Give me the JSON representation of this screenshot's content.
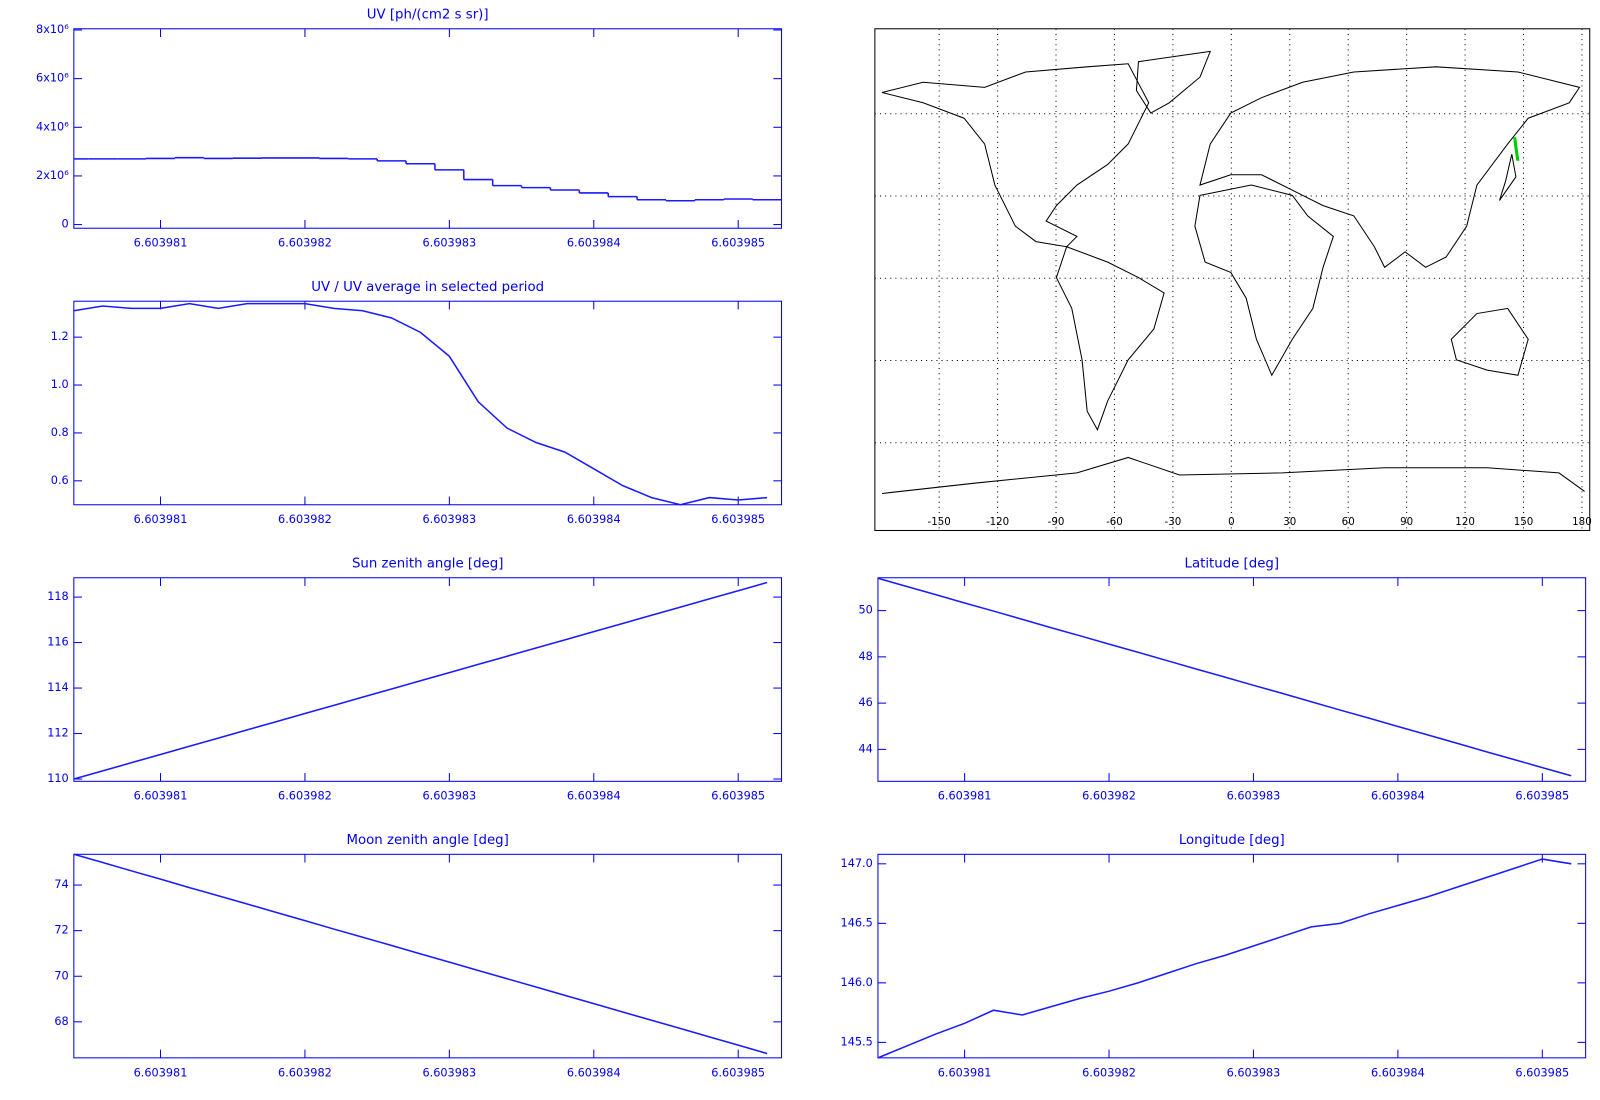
{
  "chart_data": [
    {
      "type": "line",
      "steps": true,
      "title": "UV [ph/(cm2 s sr)]",
      "color": "#1a1aff",
      "x": [
        6.6039804,
        6.6039806,
        6.6039808,
        6.603981,
        6.6039812,
        6.6039814,
        6.6039816,
        6.6039818,
        6.603982,
        6.6039822,
        6.6039824,
        6.6039826,
        6.6039828,
        6.603983,
        6.6039832,
        6.6039834,
        6.6039836,
        6.6039838,
        6.603984,
        6.6039842,
        6.6039844,
        6.6039846,
        6.6039848,
        6.603985,
        6.6039852
      ],
      "values": [
        2700000,
        2700000,
        2700000,
        2720000,
        2750000,
        2720000,
        2730000,
        2740000,
        2740000,
        2720000,
        2700000,
        2620000,
        2500000,
        2250000,
        1850000,
        1600000,
        1520000,
        1420000,
        1300000,
        1150000,
        1020000,
        980000,
        1020000,
        1050000,
        1020000
      ],
      "xlim": [
        6.6039804,
        6.6039853
      ],
      "xticks": [
        6.603981,
        6.603982,
        6.603983,
        6.603984,
        6.603985
      ],
      "ylim": [
        -150000,
        8050000
      ],
      "yticks": [
        0,
        {
          "value": 2000000,
          "label": "2x10⁶"
        },
        {
          "value": 4000000,
          "label": "4x10⁶"
        },
        {
          "value": 6000000,
          "label": "6x10⁶"
        },
        {
          "value": 8000000,
          "label": "8x10⁶"
        }
      ]
    },
    {
      "type": "line",
      "title": "UV / UV average in selected period",
      "color": "#1a1aff",
      "x": [
        6.6039804,
        6.6039806,
        6.6039808,
        6.603981,
        6.6039812,
        6.6039814,
        6.6039816,
        6.6039818,
        6.603982,
        6.6039822,
        6.6039824,
        6.6039826,
        6.6039828,
        6.603983,
        6.6039832,
        6.6039834,
        6.6039836,
        6.6039838,
        6.603984,
        6.6039842,
        6.6039844,
        6.6039846,
        6.6039848,
        6.603985,
        6.6039852
      ],
      "values": [
        1.31,
        1.33,
        1.32,
        1.32,
        1.34,
        1.32,
        1.34,
        1.34,
        1.34,
        1.32,
        1.31,
        1.28,
        1.22,
        1.12,
        0.93,
        0.82,
        0.76,
        0.72,
        0.65,
        0.58,
        0.53,
        0.5,
        0.53,
        0.52,
        0.53
      ],
      "xlim": [
        6.6039804,
        6.6039853
      ],
      "xticks": [
        6.603981,
        6.603982,
        6.603983,
        6.603984,
        6.603985
      ],
      "ylim": [
        0.5,
        1.35
      ],
      "yticks": [
        0.6,
        0.8,
        {
          "value": 1,
          "label": "1.0"
        },
        1.2
      ]
    },
    {
      "type": "map",
      "track_color": "#00cc00",
      "track_x": "chart_data.6.values",
      "track_y": "chart_data.4.values",
      "xlim": [
        -183,
        184
      ],
      "xticks": [
        -150,
        -120,
        -90,
        -60,
        -30,
        0,
        30,
        60,
        90,
        120,
        150,
        180
      ],
      "ylim": [
        -92,
        91
      ],
      "yticks": [
        -60,
        -30,
        0,
        30,
        60
      ],
      "grid": true
    },
    {
      "type": "line",
      "title": "Sun zenith angle [deg]",
      "color": "#1a1aff",
      "x": [
        6.6039804,
        6.6039806,
        6.6039808,
        6.603981,
        6.6039812,
        6.6039814,
        6.6039816,
        6.6039818,
        6.603982,
        6.6039822,
        6.6039824,
        6.6039826,
        6.6039828,
        6.603983,
        6.6039832,
        6.6039834,
        6.6039836,
        6.6039838,
        6.603984,
        6.6039842,
        6.6039844,
        6.6039846,
        6.6039848,
        6.603985,
        6.6039852
      ],
      "values": [
        110.0,
        110.36,
        110.72,
        111.08,
        111.44,
        111.8,
        112.16,
        112.52,
        112.88,
        113.24,
        113.6,
        113.96,
        114.32,
        114.68,
        115.04,
        115.4,
        115.76,
        116.12,
        116.48,
        116.84,
        117.2,
        117.56,
        117.92,
        118.28,
        118.64
      ],
      "xlim": [
        6.6039804,
        6.6039853
      ],
      "xticks": [
        6.603981,
        6.603982,
        6.603983,
        6.603984,
        6.603985
      ],
      "ylim": [
        109.9,
        118.85
      ],
      "yticks": [
        110,
        112,
        114,
        116,
        118
      ]
    },
    {
      "type": "line",
      "title": "Latitude [deg]",
      "color": "#1a1aff",
      "x": [
        6.6039804,
        6.6039806,
        6.6039808,
        6.603981,
        6.6039812,
        6.6039814,
        6.6039816,
        6.6039818,
        6.603982,
        6.6039822,
        6.6039824,
        6.6039826,
        6.6039828,
        6.603983,
        6.6039832,
        6.6039834,
        6.6039836,
        6.6039838,
        6.603984,
        6.6039842,
        6.6039844,
        6.6039846,
        6.6039848,
        6.603985,
        6.6039852
      ],
      "values": [
        51.4,
        51.04,
        50.69,
        50.33,
        49.98,
        49.62,
        49.26,
        48.91,
        48.55,
        48.2,
        47.84,
        47.48,
        47.13,
        46.77,
        46.42,
        46.06,
        45.7,
        45.35,
        44.99,
        44.64,
        44.28,
        43.92,
        43.57,
        43.21,
        42.86
      ],
      "xlim": [
        6.6039804,
        6.6039853
      ],
      "xticks": [
        6.603981,
        6.603982,
        6.603983,
        6.603984,
        6.603985
      ],
      "ylim": [
        42.62,
        51.42
      ],
      "yticks": [
        44,
        46,
        48,
        50
      ]
    },
    {
      "type": "line",
      "title": "Moon zenith angle [deg]",
      "color": "#1a1aff",
      "x": [
        6.6039804,
        6.6039806,
        6.6039808,
        6.603981,
        6.6039812,
        6.6039814,
        6.6039816,
        6.6039818,
        6.603982,
        6.6039822,
        6.6039824,
        6.6039826,
        6.6039828,
        6.603983,
        6.6039832,
        6.6039834,
        6.6039836,
        6.6039838,
        6.603984,
        6.6039842,
        6.6039844,
        6.6039846,
        6.6039848,
        6.603985,
        6.6039852
      ],
      "values": [
        75.35,
        74.99,
        74.62,
        74.26,
        73.89,
        73.53,
        73.17,
        72.8,
        72.44,
        72.07,
        71.71,
        71.35,
        70.98,
        70.62,
        70.25,
        69.89,
        69.53,
        69.16,
        68.8,
        68.43,
        68.07,
        67.71,
        67.34,
        66.98,
        66.61
      ],
      "xlim": [
        6.6039804,
        6.6039853
      ],
      "xticks": [
        6.603981,
        6.603982,
        6.603983,
        6.603984,
        6.603985
      ],
      "ylim": [
        66.42,
        75.35
      ],
      "yticks": [
        68,
        70,
        72,
        74
      ]
    },
    {
      "type": "line",
      "title": "Longitude [deg]",
      "color": "#1a1aff",
      "x": [
        6.6039804,
        6.6039806,
        6.6039808,
        6.603981,
        6.6039812,
        6.6039814,
        6.6039816,
        6.6039818,
        6.603982,
        6.6039822,
        6.6039824,
        6.6039826,
        6.6039828,
        6.603983,
        6.6039832,
        6.6039834,
        6.6039836,
        6.6039838,
        6.603984,
        6.6039842,
        6.6039844,
        6.6039846,
        6.6039848,
        6.603985,
        6.6039852
      ],
      "values": [
        145.37,
        145.47,
        145.57,
        145.66,
        145.77,
        145.73,
        145.8,
        145.87,
        145.93,
        146.0,
        146.08,
        146.16,
        146.23,
        146.31,
        146.39,
        146.47,
        146.5,
        146.58,
        146.65,
        146.72,
        146.8,
        146.88,
        146.96,
        147.04,
        147.0
      ],
      "xlim": [
        6.6039804,
        6.6039853
      ],
      "xticks": [
        6.603981,
        6.603982,
        6.603983,
        6.603984,
        6.603985
      ],
      "ylim": [
        145.37,
        147.08
      ],
      "yticks": [
        145.5,
        {
          "value": 146,
          "label": "146.0"
        },
        146.5,
        {
          "value": 147,
          "label": "147.0"
        }
      ]
    }
  ]
}
